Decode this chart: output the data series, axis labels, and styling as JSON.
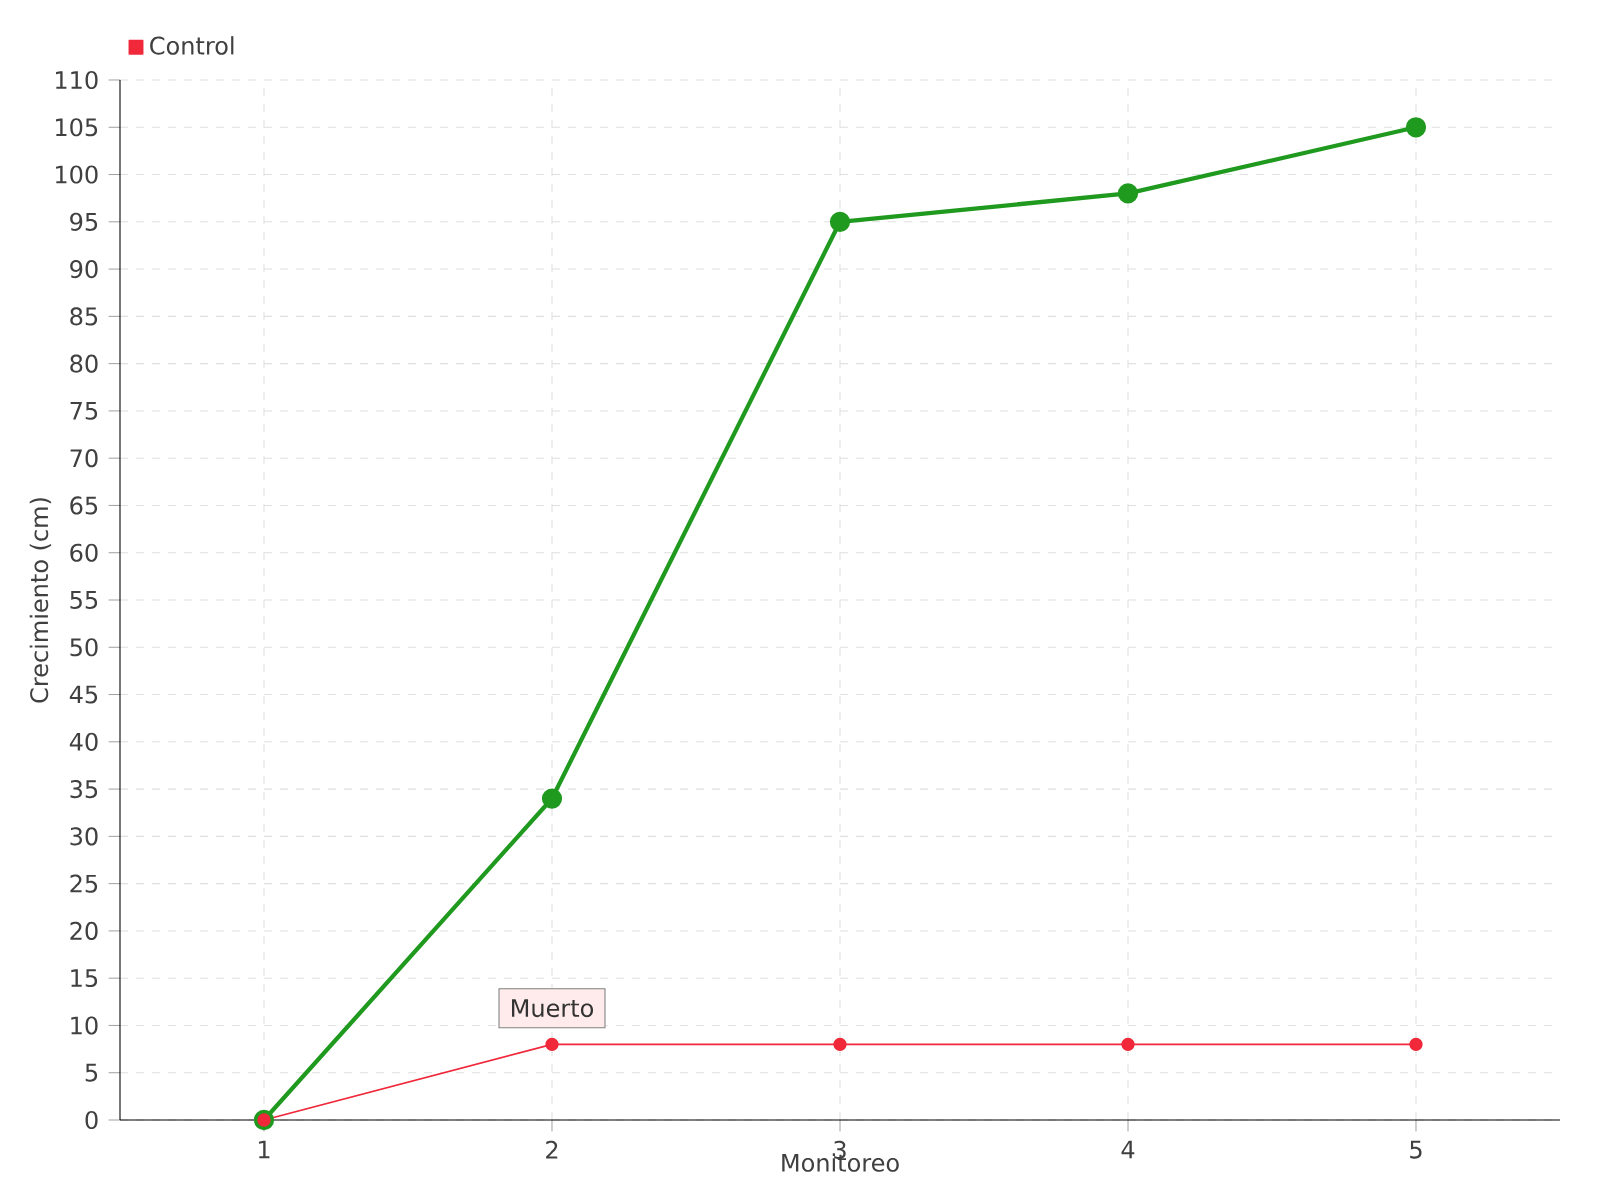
{
  "chart_data": {
    "type": "line",
    "xlabel": "Monitoreo",
    "ylabel": "Crecimiento (cm)",
    "categories": [
      "1",
      "2",
      "3",
      "4",
      "5"
    ],
    "series": [
      {
        "color": "#1f9a1f",
        "values": [
          0,
          34,
          95,
          98,
          105
        ]
      },
      {
        "name": "Control",
        "color": "#f0283a",
        "values": [
          0,
          8,
          8,
          8,
          8
        ]
      }
    ],
    "ylim": [
      0,
      110
    ],
    "yticks": [
      0,
      5,
      10,
      15,
      20,
      25,
      30,
      35,
      40,
      45,
      50,
      55,
      60,
      65,
      70,
      75,
      80,
      85,
      90,
      95,
      100,
      105,
      110
    ],
    "grid": true,
    "legend": "top left",
    "marker": "circle",
    "annotations": [
      {
        "text": "Muerto",
        "x": "2",
        "y": 8
      }
    ]
  }
}
